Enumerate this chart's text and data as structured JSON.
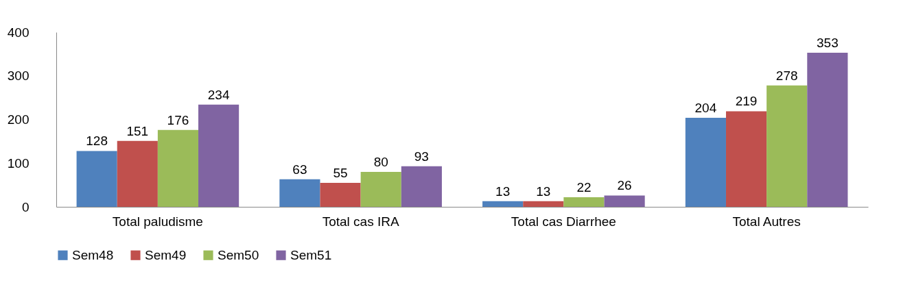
{
  "chart_data": {
    "type": "bar",
    "categories": [
      "Total paludisme",
      "Total cas IRA",
      "Total cas Diarrhee",
      "Total Autres"
    ],
    "series": [
      {
        "name": "Sem48",
        "color": "#4f81bd",
        "values": [
          128,
          63,
          13,
          204
        ]
      },
      {
        "name": "Sem49",
        "color": "#c0504d",
        "values": [
          151,
          55,
          13,
          219
        ]
      },
      {
        "name": "Sem50",
        "color": "#9bbb59",
        "values": [
          176,
          80,
          22,
          278
        ]
      },
      {
        "name": "Sem51",
        "color": "#8064a2",
        "values": [
          234,
          93,
          26,
          353
        ]
      }
    ],
    "ylim": [
      0,
      400
    ],
    "yticks": [
      0,
      100,
      200,
      300,
      400
    ],
    "grid": false,
    "legend": "bottom",
    "data_labels": true
  }
}
